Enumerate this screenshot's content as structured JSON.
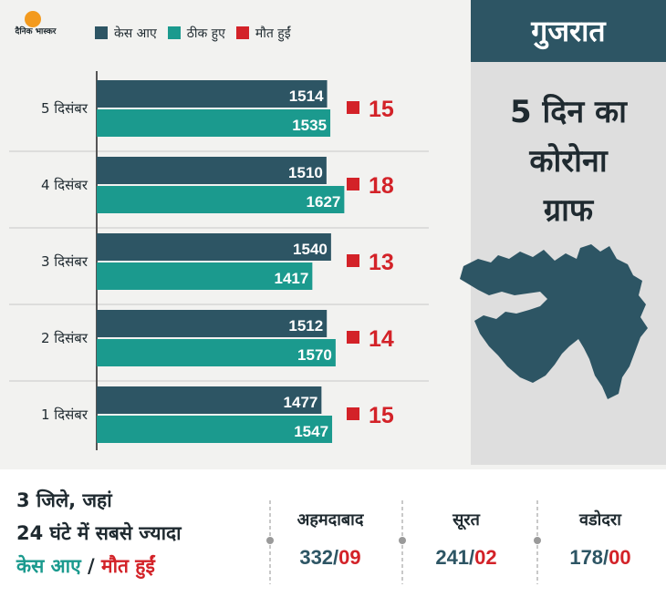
{
  "brand": {
    "logo_text": "दैनिक भास्कर",
    "sun_color": "#f39a1e"
  },
  "legend": [
    {
      "label": "केस आए",
      "color": "#2d5564"
    },
    {
      "label": "ठीक हुए",
      "color": "#1b9a8e"
    },
    {
      "label": "मौत हुईं",
      "color": "#d32228"
    }
  ],
  "chart_data": {
    "type": "bar",
    "orientation": "horizontal",
    "categories": [
      "5 दिसंबर",
      "4 दिसंबर",
      "3 दिसंबर",
      "2 दिसंबर",
      "1 दिसंबर"
    ],
    "series": [
      {
        "name": "केस आए",
        "values": [
          1514,
          1510,
          1540,
          1512,
          1477
        ],
        "color": "#2d5564"
      },
      {
        "name": "ठीक हुए",
        "values": [
          1535,
          1627,
          1417,
          1570,
          1547
        ],
        "color": "#1b9a8e"
      },
      {
        "name": "मौत हुईं",
        "values": [
          15,
          18,
          13,
          14,
          15
        ],
        "color": "#d32228"
      }
    ],
    "legend_position": "top",
    "grid": true
  },
  "panel": {
    "state": "गुजरात",
    "title_lines": [
      "5 दिन का",
      "कोरोना",
      "ग्राफ"
    ],
    "badge_color": "#2d5564",
    "map_color": "#2d5564"
  },
  "bottom": {
    "headline_lines": [
      "3 जिले, जहां",
      "24 घंटे में सबसे ज्यादा"
    ],
    "headline_cases": "केस आए",
    "headline_separator": " / ",
    "headline_deaths": "मौत हुईं",
    "cities": [
      {
        "name": "अहमदाबाद",
        "cases": "332",
        "deaths": "09"
      },
      {
        "name": "सूरत",
        "cases": "241",
        "deaths": "02"
      },
      {
        "name": "वडोदरा",
        "cases": "178",
        "deaths": "00"
      }
    ]
  }
}
